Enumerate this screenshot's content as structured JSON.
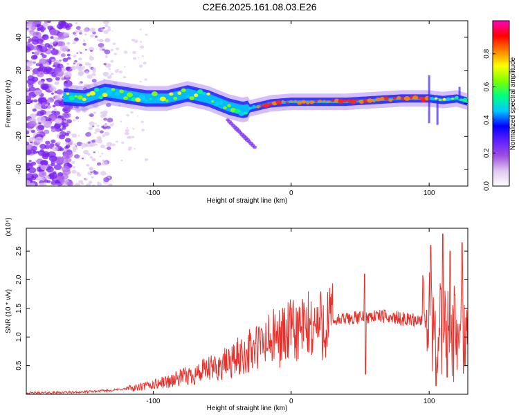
{
  "title": "C2E6.2025.161.08.03.E26",
  "chart_data": [
    {
      "type": "heatmap",
      "xlabel": "Height of straight line (km)",
      "ylabel": "Frequency (Hz)",
      "xlim": [
        -192,
        128
      ],
      "ylim": [
        -50,
        50
      ],
      "xticks": [
        -100,
        0,
        100
      ],
      "xtick_labels": [
        "-100",
        "0",
        "100"
      ],
      "yticks": [
        -40,
        -20,
        0,
        20,
        40
      ],
      "ytick_labels": [
        "-40",
        "-20",
        "0",
        "20",
        "40"
      ],
      "colorbar": {
        "label": "Normalized spectral amplitude",
        "range": [
          0,
          1
        ],
        "ticks": [
          0.0,
          0.2,
          0.4,
          0.6,
          0.8
        ],
        "tick_labels": [
          "0.0",
          "0.2",
          "0.4",
          "0.6",
          "0.8"
        ],
        "colors": [
          "#ffffff",
          "#e0c8f0",
          "#a050e0",
          "#6020ff",
          "#0000ff",
          "#00c8ff",
          "#00ff80",
          "#80ff00",
          "#ffff00",
          "#ff8000",
          "#ff0000",
          "#ff00c0"
        ]
      },
      "ridge": {
        "x": [
          -165,
          -150,
          -135,
          -120,
          -105,
          -90,
          -75,
          -60,
          -45,
          -35,
          -25,
          -15,
          0,
          20,
          40,
          60,
          80,
          100,
          110,
          120,
          128
        ],
        "y": [
          4,
          3,
          7,
          5,
          3,
          3,
          6,
          3,
          -2,
          -4,
          -2,
          0,
          1,
          1,
          1,
          2,
          3,
          3,
          2,
          3,
          1
        ]
      }
    },
    {
      "type": "line",
      "xlabel": "Height of straight line (km)",
      "ylabel": "SNR (10 * v/v)",
      "y_multiplier": "(x10⁴)",
      "xlim": [
        -192,
        128
      ],
      "ylim": [
        0,
        2.9
      ],
      "xticks": [
        -100,
        0,
        100
      ],
      "xtick_labels": [
        "-100",
        "0",
        "100"
      ],
      "yticks": [
        0.5,
        1.0,
        1.5,
        2.0,
        2.5
      ],
      "ytick_labels": [
        "0.5",
        "1.0",
        "1.5",
        "2.0",
        "2.5"
      ],
      "color": "#e8302a",
      "envelope": {
        "x": [
          -192,
          -170,
          -150,
          -130,
          -110,
          -90,
          -70,
          -50,
          -30,
          -10,
          10,
          30,
          45,
          55,
          60,
          70,
          80,
          90,
          100,
          105,
          110,
          115,
          120,
          125,
          128
        ],
        "y": [
          0.02,
          0.03,
          0.04,
          0.07,
          0.12,
          0.22,
          0.35,
          0.5,
          0.75,
          1.0,
          1.15,
          1.28,
          1.33,
          1.35,
          1.37,
          1.35,
          1.32,
          1.3,
          1.3,
          1.2,
          1.1,
          1.0,
          1.1,
          1.25,
          1.25
        ]
      },
      "peaks": [
        {
          "x": 53,
          "y": 2.1
        },
        {
          "x": 54,
          "y": 0.35
        },
        {
          "x": 101,
          "y": 2.6
        },
        {
          "x": 105,
          "y": 0.15
        },
        {
          "x": 110,
          "y": 2.8
        },
        {
          "x": 113,
          "y": 0.3
        },
        {
          "x": 115,
          "y": 2.5
        },
        {
          "x": 124,
          "y": 2.65
        },
        {
          "x": 126,
          "y": 0.5
        }
      ]
    }
  ]
}
